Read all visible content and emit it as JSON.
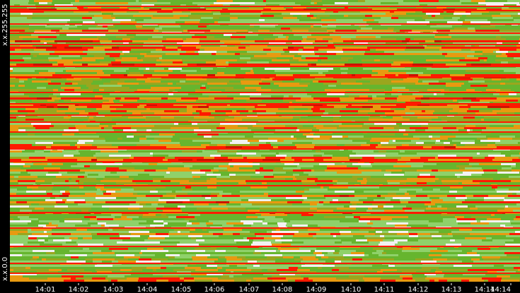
{
  "chart_data": {
    "type": "heatmap",
    "title": "",
    "xlabel": "",
    "ylabel": "",
    "x_tick_labels": [
      "14:01",
      "14:02",
      "14:03",
      "14:04",
      "14:05",
      "14:06",
      "14:07",
      "14:08",
      "14:09",
      "14:10",
      "14:11",
      "14:12",
      "14:13",
      "14:14",
      "14:14"
    ],
    "y_tick_labels": [
      "x.x.0.0",
      "x.x.255.255"
    ],
    "y_range": [
      "x.x.0.0",
      "x.x.255.255"
    ],
    "palette": {
      "background": "#000000",
      "low": "#f2f2f2",
      "light-green": "#8fd16a",
      "green": "#66b52e",
      "olive": "#9aa61e",
      "orange": "#e89a10",
      "red": "#ff1a00",
      "dark-red": "#cc1100"
    },
    "grid": false,
    "legend": "none"
  }
}
